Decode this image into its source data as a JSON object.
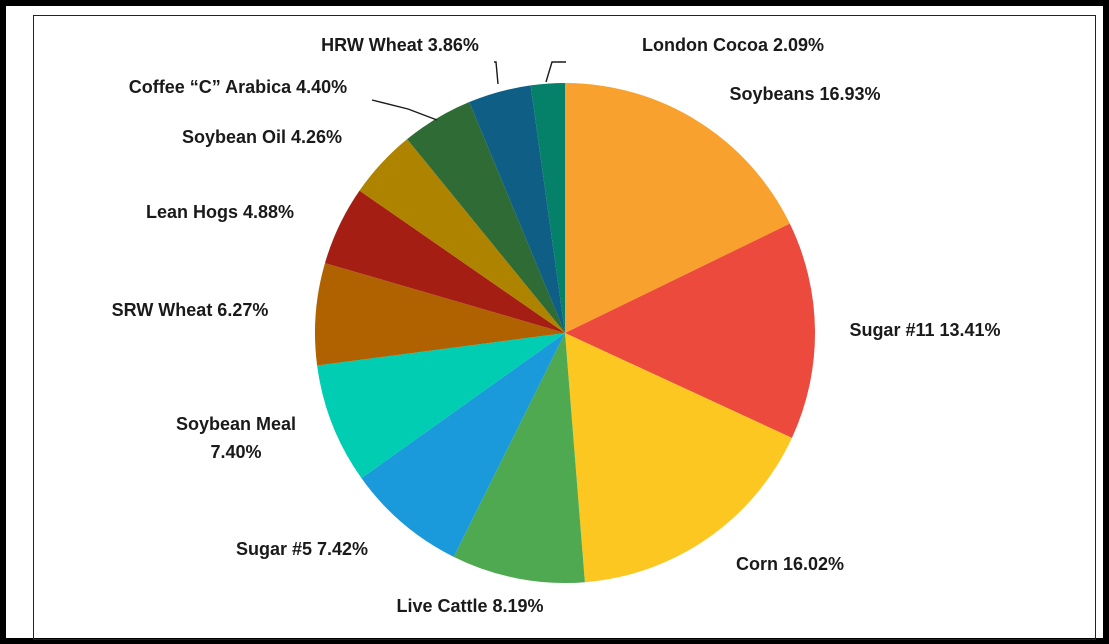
{
  "chart_data": {
    "type": "pie",
    "title": "",
    "slices": [
      {
        "name": "Soybeans",
        "value": 16.93,
        "label": "Soybeans 16.93%",
        "color": "#F9A12E"
      },
      {
        "name": "Sugar #11",
        "value": 13.41,
        "label": "Sugar #11 13.41%",
        "color": "#EC4A3C"
      },
      {
        "name": "Corn",
        "value": 16.02,
        "label": "Corn 16.02%",
        "color": "#FCC721"
      },
      {
        "name": "Live Cattle",
        "value": 8.19,
        "label": "Live Cattle 8.19%",
        "color": "#4EA951"
      },
      {
        "name": "Sugar #5",
        "value": 7.42,
        "label": "Sugar #5 7.42%",
        "color": "#1A9ADA"
      },
      {
        "name": "Soybean Meal",
        "value": 7.4,
        "label": "Soybean Meal 7.40%",
        "label_lines": [
          "Soybean Meal",
          "7.40%"
        ],
        "color": "#00CDB1"
      },
      {
        "name": "SRW Wheat",
        "value": 6.27,
        "label": "SRW Wheat 6.27%",
        "color": "#B06200"
      },
      {
        "name": "Lean Hogs",
        "value": 4.88,
        "label": "Lean Hogs 4.88%",
        "color": "#A41E14"
      },
      {
        "name": "Soybean Oil",
        "value": 4.26,
        "label": "Soybean Oil 4.26%",
        "color": "#AE8300"
      },
      {
        "name": "Coffee “C” Arabica",
        "value": 4.4,
        "label": "Coffee “C” Arabica 4.40%",
        "color": "#2F6B35"
      },
      {
        "name": "HRW Wheat",
        "value": 3.86,
        "label": "HRW Wheat 3.86%",
        "color": "#0F5E85"
      },
      {
        "name": "London Cocoa",
        "value": 2.09,
        "label": "London Cocoa 2.09%",
        "color": "#058169"
      }
    ],
    "legend": "none",
    "start_angle_degrees": 0,
    "direction": "clockwise"
  }
}
